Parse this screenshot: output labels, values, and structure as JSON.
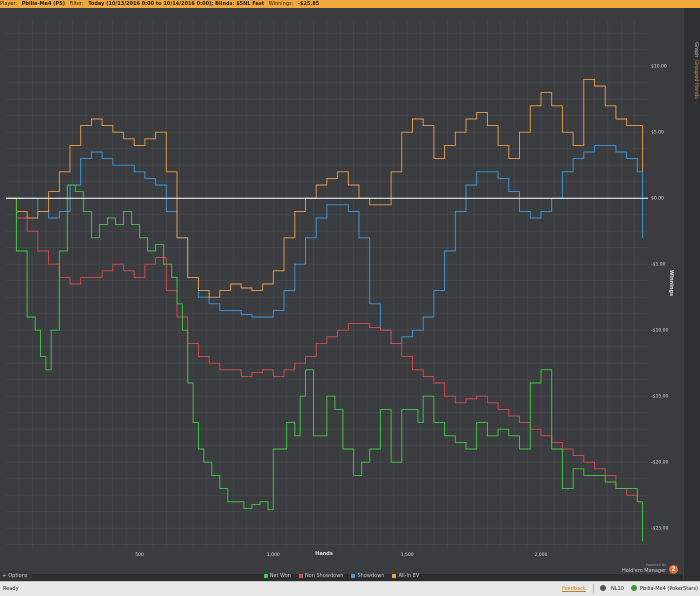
{
  "header": {
    "player_label": "Player:",
    "player_value": "Pbilia-Me4 (PS)",
    "filter_label": "Filter:",
    "filter_value": "Today (10/13/2016 0:00 to 10/14/2016 0:00); Blinds: $5NL Fast",
    "winnings_label": "Winnings:",
    "winnings_value": "-$25.85"
  },
  "right_tabs": {
    "graph": "Graph",
    "grouped": "Grouped Hands"
  },
  "options_label": "Options",
  "logo": {
    "powered": "Powered by",
    "name": "Hold'em Manager",
    "number": "2"
  },
  "status": {
    "ready": "Ready",
    "feedback": "Feedback",
    "stake": "NL10",
    "player": "Pbilia-Me4 (PokerStars)"
  },
  "colors": {
    "net_won": "#3fd13f",
    "non_showdown": "#e04b4b",
    "showdown": "#3f9de0",
    "all_in_ev": "#f0a04a",
    "zero_line": "#ffffff"
  },
  "chart_data": {
    "type": "line",
    "xlabel": "Hands",
    "ylabel": "Winnings",
    "xlim": [
      1,
      2400
    ],
    "ylim": [
      -26.5,
      13.5
    ],
    "x_ticks": [
      {
        "value": 500,
        "label": "500"
      },
      {
        "value": 1000,
        "label": "1,000"
      },
      {
        "value": 1500,
        "label": "1,500"
      },
      {
        "value": 2000,
        "label": "2,000"
      }
    ],
    "y_ticks": [
      {
        "value": 10,
        "label": "$10.00"
      },
      {
        "value": 5,
        "label": "$5.00"
      },
      {
        "value": 0,
        "label": "$0.00"
      },
      {
        "value": -5,
        "label": "-$5.00"
      },
      {
        "value": -10,
        "label": "-$10.00"
      },
      {
        "value": -15,
        "label": "-$15.00"
      },
      {
        "value": -20,
        "label": "-$20.00"
      },
      {
        "value": -25,
        "label": "-$25.00"
      }
    ],
    "grid": true,
    "legend_position": "bottom",
    "series": [
      {
        "name": "Net Won",
        "key": "net_won",
        "x": [
          1,
          40,
          80,
          110,
          130,
          150,
          170,
          200,
          230,
          260,
          290,
          320,
          350,
          380,
          410,
          440,
          470,
          500,
          530,
          560,
          590,
          620,
          640,
          660,
          680,
          700,
          720,
          740,
          770,
          800,
          830,
          860,
          890,
          920,
          950,
          980,
          1000,
          1050,
          1080,
          1100,
          1120,
          1150,
          1180,
          1200,
          1230,
          1260,
          1300,
          1330,
          1360,
          1400,
          1440,
          1480,
          1510,
          1540,
          1560,
          1600,
          1640,
          1680,
          1720,
          1760,
          1800,
          1840,
          1880,
          1920,
          1960,
          2000,
          2040,
          2080,
          2120,
          2160,
          2200,
          2240,
          2280,
          2320,
          2360,
          2380
        ],
        "values": [
          0,
          -4,
          -9,
          -10,
          -12,
          -13,
          -10,
          -4,
          1,
          0.5,
          -1,
          -3,
          -2,
          -1.5,
          -2,
          -1,
          -2,
          -3,
          -4,
          -3.5,
          -5,
          -6,
          -8,
          -10,
          -14,
          -17,
          -19,
          -20,
          -21,
          -22,
          -23,
          -23,
          -23.5,
          -23.2,
          -23,
          -23.6,
          -19,
          -17,
          -18,
          -15,
          -13,
          -18,
          -18,
          -15,
          -16,
          -19,
          -21,
          -20,
          -19,
          -16,
          -20,
          -16,
          -16,
          -17,
          -15,
          -17,
          -18,
          -18.5,
          -19,
          -17,
          -18,
          -17.5,
          -18,
          -19,
          -14,
          -13,
          -19,
          -22,
          -20.5,
          -21,
          -21,
          -21.5,
          -22,
          -22,
          -23,
          -26
        ]
      },
      {
        "name": "Non Showdown",
        "key": "non_showdown",
        "x": [
          1,
          40,
          80,
          120,
          160,
          200,
          240,
          280,
          320,
          360,
          400,
          440,
          480,
          520,
          560,
          600,
          640,
          680,
          720,
          760,
          800,
          840,
          880,
          920,
          960,
          1000,
          1040,
          1080,
          1120,
          1160,
          1200,
          1240,
          1280,
          1320,
          1360,
          1400,
          1440,
          1480,
          1520,
          1560,
          1600,
          1640,
          1680,
          1720,
          1760,
          1800,
          1840,
          1880,
          1920,
          1960,
          2000,
          2040,
          2080,
          2120,
          2160,
          2200,
          2240,
          2280,
          2320,
          2360,
          2380
        ],
        "values": [
          0,
          -1.5,
          -2.5,
          -4,
          -5,
          -6,
          -6.5,
          -6,
          -6,
          -5.5,
          -5,
          -5.5,
          -6,
          -5,
          -4.5,
          -7,
          -9,
          -11,
          -12,
          -12.5,
          -13,
          -13,
          -13.5,
          -13.2,
          -13,
          -13.5,
          -13,
          -12.5,
          -12,
          -11,
          -10.5,
          -10,
          -9.5,
          -9.5,
          -9.8,
          -10,
          -11,
          -12,
          -13,
          -13.5,
          -14,
          -15,
          -15.5,
          -15.2,
          -15,
          -15.5,
          -16,
          -16.5,
          -17,
          -17.5,
          -18,
          -18.5,
          -19,
          -19.5,
          -20,
          -20.5,
          -21,
          -22,
          -22.5,
          -23,
          -23
        ]
      },
      {
        "name": "Showdown",
        "key": "showdown",
        "x": [
          1,
          40,
          80,
          120,
          160,
          200,
          240,
          280,
          320,
          360,
          400,
          440,
          480,
          520,
          560,
          600,
          640,
          680,
          720,
          760,
          800,
          840,
          880,
          920,
          960,
          1000,
          1040,
          1080,
          1120,
          1160,
          1200,
          1240,
          1280,
          1320,
          1360,
          1400,
          1440,
          1480,
          1520,
          1560,
          1600,
          1640,
          1680,
          1720,
          1760,
          1800,
          1840,
          1880,
          1920,
          1960,
          2000,
          2040,
          2080,
          2120,
          2160,
          2200,
          2240,
          2280,
          2320,
          2360,
          2380
        ],
        "values": [
          0,
          0,
          0,
          -1,
          -1.5,
          -1,
          1,
          3,
          3.5,
          3,
          2.5,
          2.5,
          2,
          1.5,
          1,
          -1,
          -3,
          -6,
          -7.5,
          -8,
          -8.5,
          -8.5,
          -8.8,
          -9,
          -9,
          -8.5,
          -7,
          -5,
          -3,
          -1.5,
          -0.5,
          -0.5,
          -1,
          -3,
          -8,
          -10,
          -11,
          -10.5,
          -10,
          -9,
          -7,
          -4,
          -1,
          1,
          2,
          2,
          1.5,
          0.5,
          -1,
          -1.5,
          -1,
          0,
          2,
          3,
          3.5,
          4,
          4,
          3.5,
          3,
          2,
          -3
        ]
      },
      {
        "name": "All-In EV",
        "key": "all_in_ev",
        "x": [
          1,
          40,
          80,
          120,
          160,
          200,
          240,
          280,
          320,
          360,
          400,
          440,
          480,
          520,
          560,
          600,
          640,
          680,
          720,
          760,
          800,
          840,
          880,
          920,
          960,
          1000,
          1040,
          1080,
          1120,
          1160,
          1200,
          1240,
          1280,
          1320,
          1360,
          1400,
          1440,
          1480,
          1520,
          1560,
          1600,
          1640,
          1680,
          1720,
          1760,
          1800,
          1840,
          1880,
          1920,
          1960,
          2000,
          2040,
          2080,
          2120,
          2160,
          2200,
          2240,
          2280,
          2320,
          2360,
          2380
        ],
        "values": [
          0,
          -1,
          -1.5,
          -1,
          0.5,
          2,
          4,
          5.5,
          6,
          5.5,
          5,
          4.5,
          4,
          4.5,
          5,
          2,
          -3,
          -6,
          -7,
          -7.5,
          -7,
          -6.5,
          -6.8,
          -7,
          -6.5,
          -5.5,
          -3,
          -1,
          0,
          1,
          1.5,
          2,
          1,
          0,
          -0.5,
          -0.5,
          2,
          5,
          6,
          5.5,
          3,
          4,
          5,
          6,
          6.5,
          5.5,
          4,
          3,
          5,
          7,
          8,
          7,
          5,
          4,
          9,
          8.5,
          7,
          6,
          5.5,
          5.5,
          2
        ]
      }
    ]
  }
}
